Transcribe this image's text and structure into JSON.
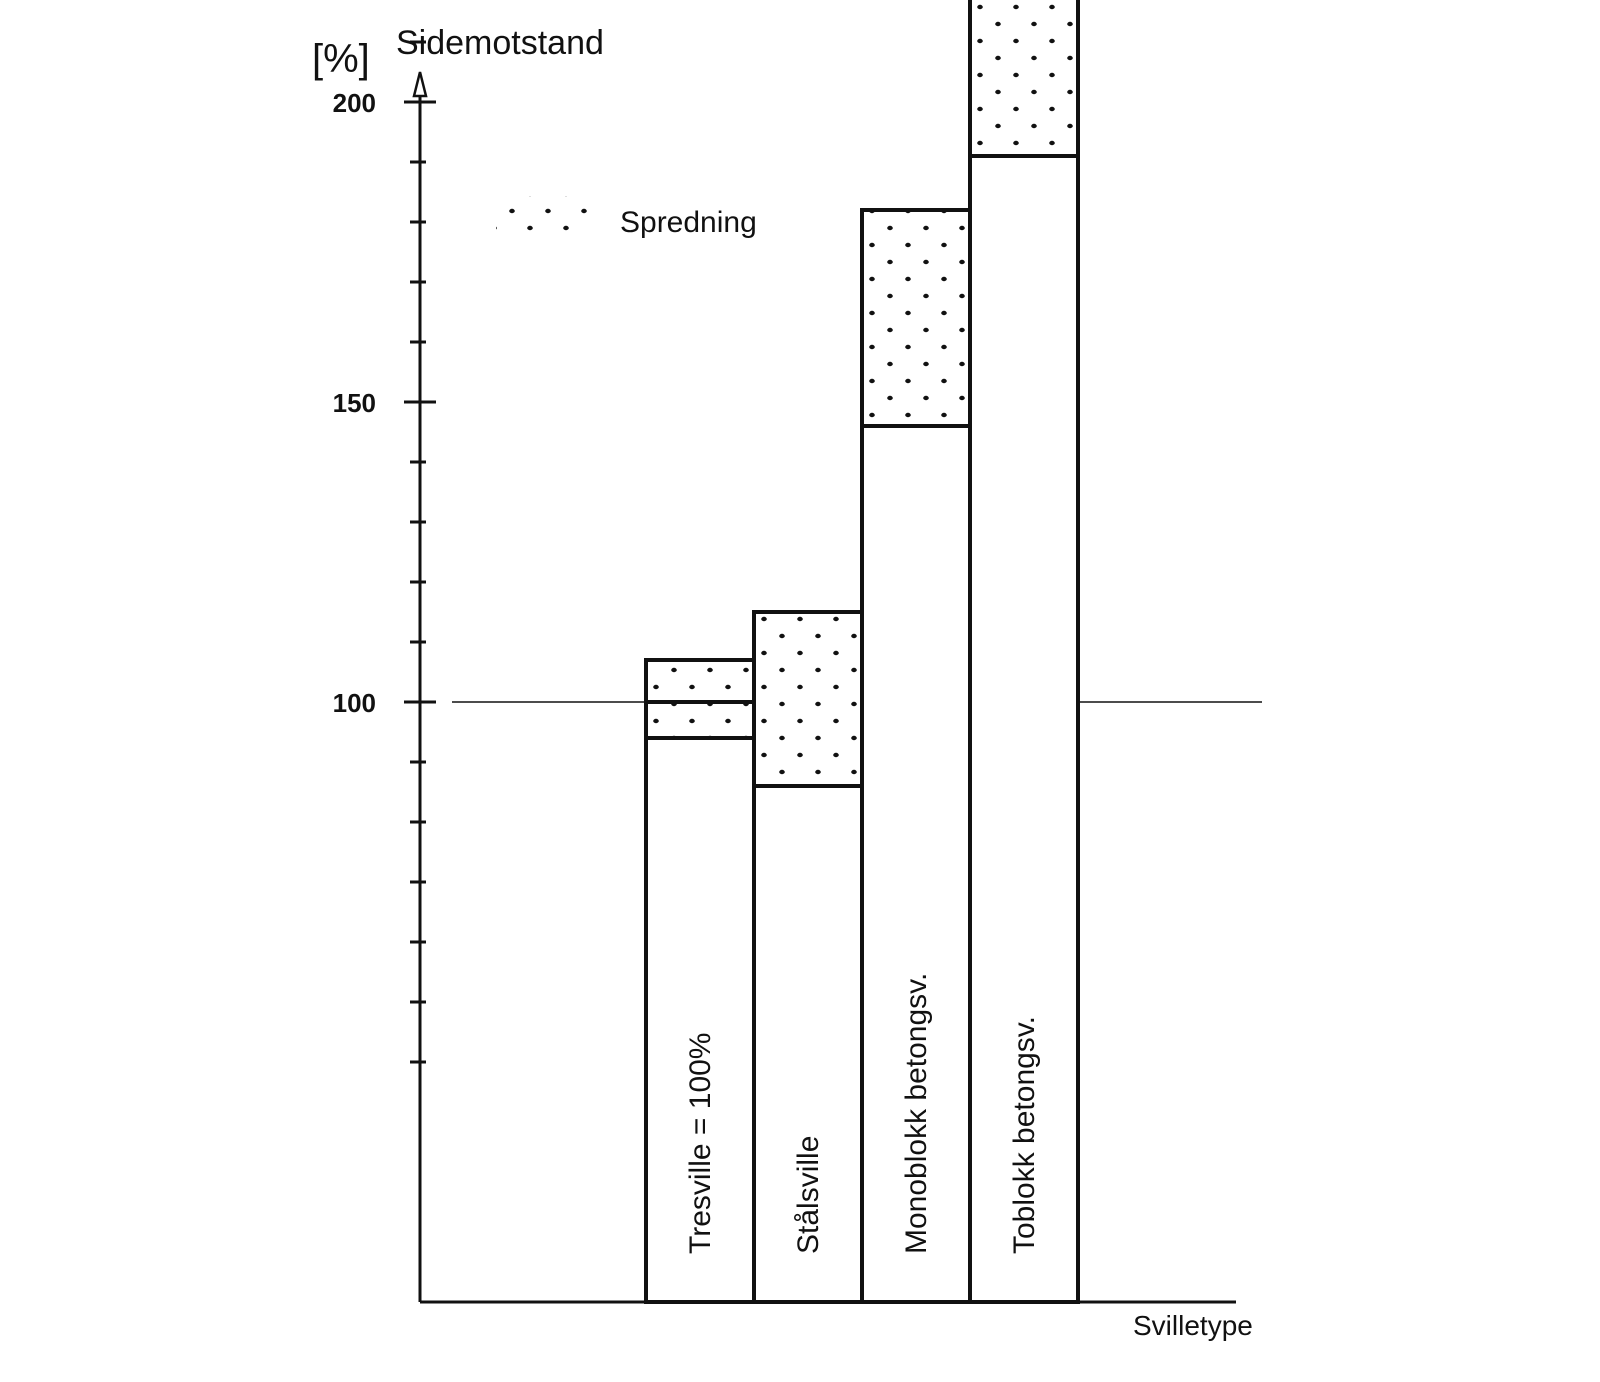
{
  "chart_data": {
    "type": "bar",
    "ylabel": "Sidemotstand",
    "yunit": "[%]",
    "xlabel": "Svilletype",
    "legend": {
      "label": "Spredning",
      "placement": "top-left"
    },
    "yticks_labeled": [
      100,
      150,
      200
    ],
    "ylim": [
      0,
      230
    ],
    "reference_line": 100,
    "categories": [
      "Tresville = 100%",
      "Stålsville",
      "Monoblokk betongsv.",
      "Toblokk betongsv."
    ],
    "series": [
      {
        "values": [
          94,
          86,
          146,
          191
        ]
      },
      {
        "name": "Spredning",
        "ranges": [
          [
            94,
            107
          ],
          [
            86,
            115
          ],
          [
            146,
            182
          ],
          [
            191,
            231
          ]
        ]
      }
    ],
    "grid": false
  }
}
